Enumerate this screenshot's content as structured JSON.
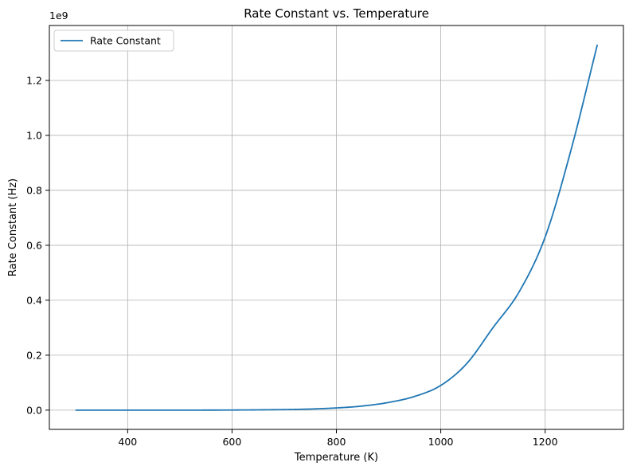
{
  "chart_data": {
    "type": "line",
    "title": "Rate Constant vs. Temperature",
    "xlabel": "Temperature (K)",
    "ylabel": "Rate Constant (Hz)",
    "y_scale_label": "1e9",
    "xlim": [
      250,
      1350
    ],
    "ylim": [
      -0.07,
      1.4
    ],
    "x_ticks": [
      400,
      600,
      800,
      1000,
      1200
    ],
    "x_tick_labels": [
      "400",
      "600",
      "800",
      "1000",
      "1200"
    ],
    "y_ticks": [
      0.0,
      0.2,
      0.4,
      0.6,
      0.8,
      1.0,
      1.2
    ],
    "y_tick_labels": [
      "0.0",
      "0.2",
      "0.4",
      "0.6",
      "0.8",
      "1.0",
      "1.2"
    ],
    "grid": true,
    "legend_position": "top-left",
    "series": [
      {
        "name": "Rate Constant",
        "color": "#1f77b4",
        "x": [
          300,
          500,
          700,
          750,
          800,
          850,
          900,
          950,
          1000,
          1050,
          1100,
          1150,
          1200,
          1250,
          1300
        ],
        "y": [
          0.0,
          0.0,
          0.002,
          0.004,
          0.008,
          0.015,
          0.028,
          0.05,
          0.09,
          0.17,
          0.3,
          0.43,
          0.63,
          0.95,
          1.33
        ]
      }
    ]
  }
}
